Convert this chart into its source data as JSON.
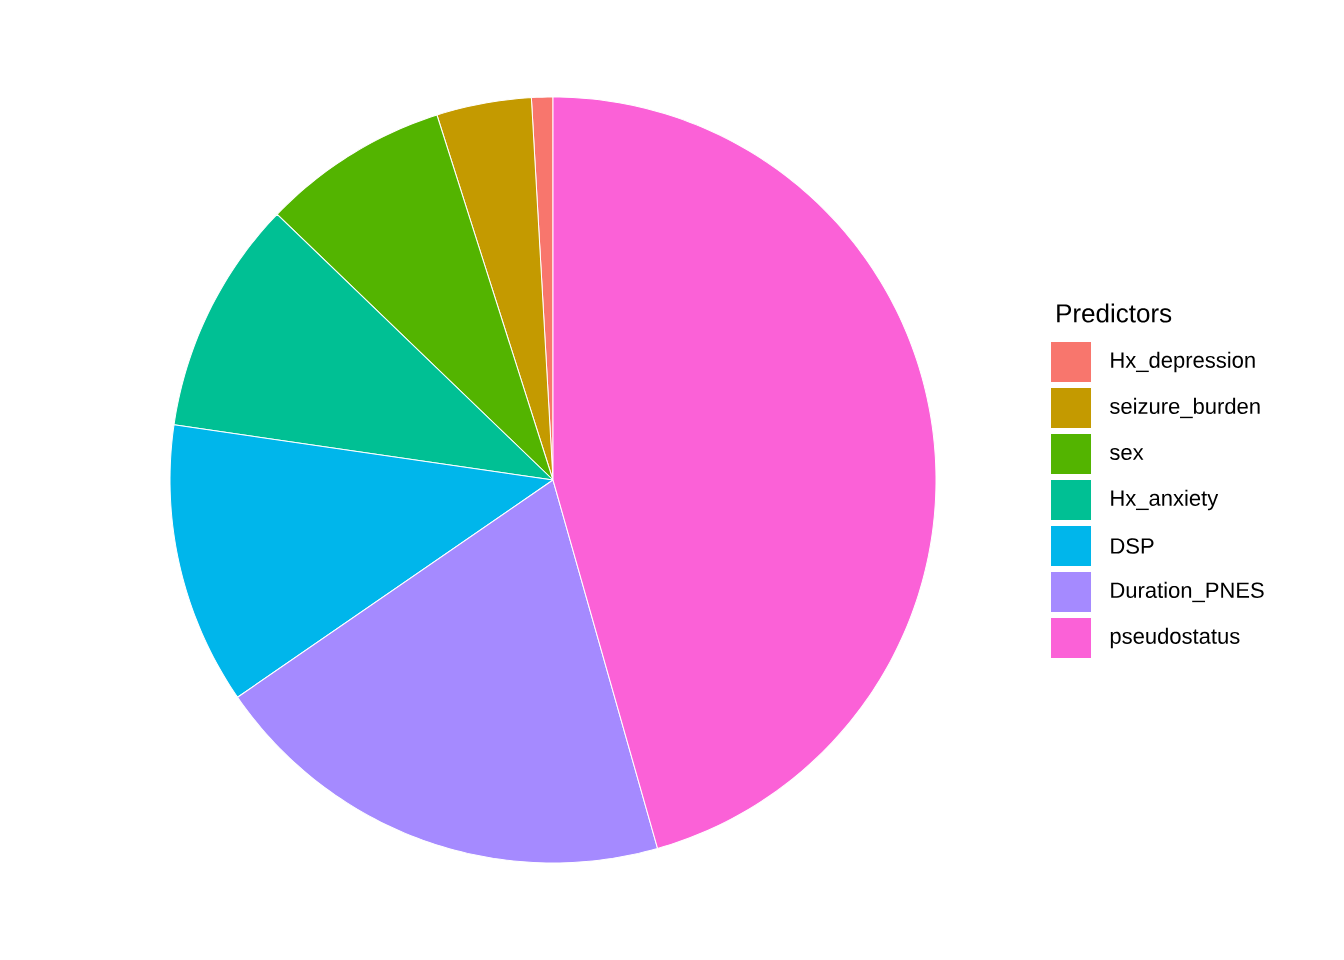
{
  "chart_data": {
    "type": "pie",
    "legend_title": "Predictors",
    "legend": "right",
    "categories": [
      "Hx_depression",
      "seizure_burden",
      "sex",
      "Hx_anxiety",
      "DSP",
      "Duration_PNES",
      "pseudostatus"
    ],
    "values": [
      0.9,
      4.0,
      7.9,
      9.9,
      11.9,
      19.8,
      45.6
    ],
    "colors": [
      "#F8766D",
      "#C49A00",
      "#53B400",
      "#00C094",
      "#00B6EB",
      "#A58AFF",
      "#FB61D7"
    ]
  }
}
